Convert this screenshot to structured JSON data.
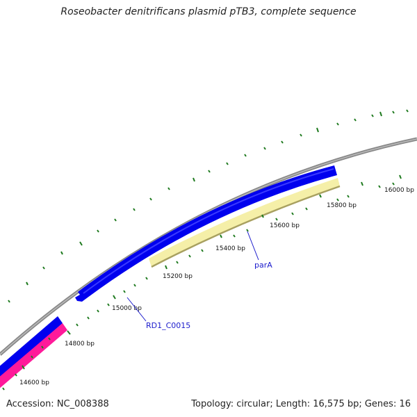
{
  "title": "Roseobacter denitrificans plasmid pTB3, complete sequence",
  "accession": "Accession: NC_008388",
  "summary": "Topology: circular; Length: 16,575 bp; Genes: 16",
  "scale_labels": [
    "14600 bp",
    "14800 bp",
    "15000 bp",
    "15200 bp",
    "15400 bp",
    "15600 bp",
    "15800 bp",
    "16000 bp"
  ],
  "genes": [
    {
      "name": "RD1_C0015",
      "strand": "forward",
      "color": "#0000ee"
    },
    {
      "name": "parA",
      "strand": "reverse",
      "color": "#f5efa8",
      "edge_color": "#a8a060"
    }
  ],
  "colors": {
    "backbone": "#888888",
    "ticks": "#1e7a1e",
    "forward_cds": "#0000ee",
    "pink_feature": "#ff1a9a",
    "label_text": "#1a1acc"
  }
}
